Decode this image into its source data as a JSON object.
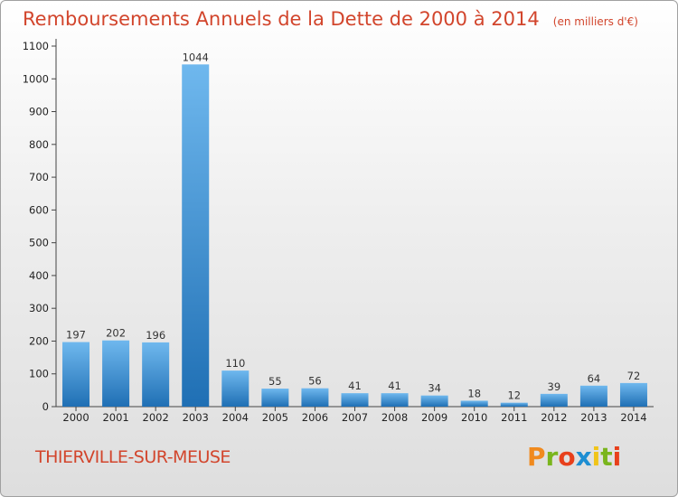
{
  "header": {
    "title": "Remboursements Annuels de la Dette de 2000 à 2014",
    "unit": "(en milliers d'€)"
  },
  "footer": {
    "commune": "THIERVILLE-SUR-MEUSE",
    "logo": "Proxiti",
    "logo_colors": [
      "#f08a1e",
      "#7ab51d",
      "#e8401c",
      "#1d8ed2",
      "#f0c419",
      "#7ab51d",
      "#e8401c"
    ]
  },
  "chart_data": {
    "type": "bar",
    "categories": [
      "2000",
      "2001",
      "2002",
      "2003",
      "2004",
      "2005",
      "2006",
      "2007",
      "2008",
      "2009",
      "2010",
      "2011",
      "2012",
      "2013",
      "2014"
    ],
    "values": [
      197,
      202,
      196,
      1044,
      110,
      55,
      56,
      41,
      41,
      34,
      18,
      12,
      39,
      64,
      72
    ],
    "ylim": [
      0,
      1100
    ],
    "yticks": [
      0,
      100,
      200,
      300,
      400,
      500,
      600,
      700,
      800,
      900,
      1000,
      1100
    ],
    "grid": false,
    "bar_color": "#3a93d8",
    "bar_color_light": "#6fb8ee",
    "bar_color_dark": "#1f6fb4"
  }
}
